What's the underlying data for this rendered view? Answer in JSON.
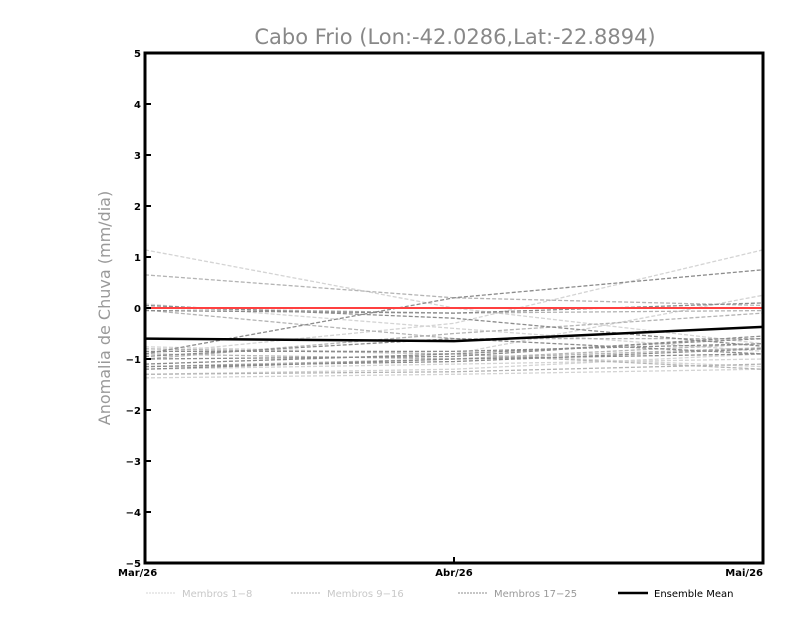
{
  "chart_data": {
    "type": "line",
    "title": "Cabo Frio (Lon:-42.0286,Lat:-22.8894)",
    "xlabel": "",
    "ylabel": "Anomalia de Chuva (mm/dia)",
    "categories": [
      "Mar/26",
      "Abr/26",
      "Mai/26"
    ],
    "ylim": [
      -5,
      5
    ],
    "yticks": [
      "5",
      "4",
      "3",
      "2",
      "1",
      "0",
      "-1",
      "-2",
      "-3",
      "-4",
      "-5"
    ],
    "reference_line": {
      "value": 0,
      "color": "#ff4040"
    },
    "groups": [
      {
        "name": "Membros 1-8",
        "color": "#d4d4d4",
        "series": [
          [
            1.14,
            0.0,
            -0.7
          ],
          [
            0.08,
            -0.4,
            -0.85
          ],
          [
            -0.76,
            -0.9,
            -1.15
          ],
          [
            -1.2,
            -1.1,
            -1.0
          ],
          [
            -1.37,
            -1.3,
            -1.2
          ],
          [
            -1.1,
            -0.9,
            0.25
          ],
          [
            -1.3,
            -1.2,
            -0.9
          ],
          [
            -0.9,
            -0.3,
            1.14
          ]
        ]
      },
      {
        "name": "Membros 9-16",
        "color": "#b4b4b4",
        "series": [
          [
            0.65,
            0.2,
            0.05
          ],
          [
            -0.04,
            -0.6,
            -0.6
          ],
          [
            -0.9,
            -1.0,
            -0.78
          ],
          [
            -1.15,
            -1.0,
            -0.7
          ],
          [
            -0.8,
            -0.9,
            -1.2
          ],
          [
            -1.3,
            -1.25,
            -1.1
          ],
          [
            -1.0,
            -0.5,
            -0.1
          ],
          [
            0.0,
            -0.1,
            -0.05
          ]
        ]
      },
      {
        "name": "Membros 17-25",
        "color": "#8c8c8c",
        "series": [
          [
            -0.9,
            0.2,
            0.75
          ],
          [
            -1.1,
            -0.9,
            -0.6
          ],
          [
            -0.85,
            -0.85,
            -0.7
          ],
          [
            -1.2,
            -1.0,
            -0.9
          ],
          [
            -0.05,
            -0.1,
            0.1
          ],
          [
            -1.0,
            -0.95,
            -0.55
          ],
          [
            0.05,
            -0.2,
            -0.75
          ],
          [
            -1.15,
            -1.05,
            -0.8
          ],
          [
            -0.95,
            -0.6,
            -0.9
          ]
        ]
      }
    ],
    "ensemble_mean": {
      "name": "Ensemble Mean",
      "color": "#000000",
      "values": [
        -0.6,
        -0.65,
        -0.37
      ]
    },
    "legend_position": "bottom"
  }
}
